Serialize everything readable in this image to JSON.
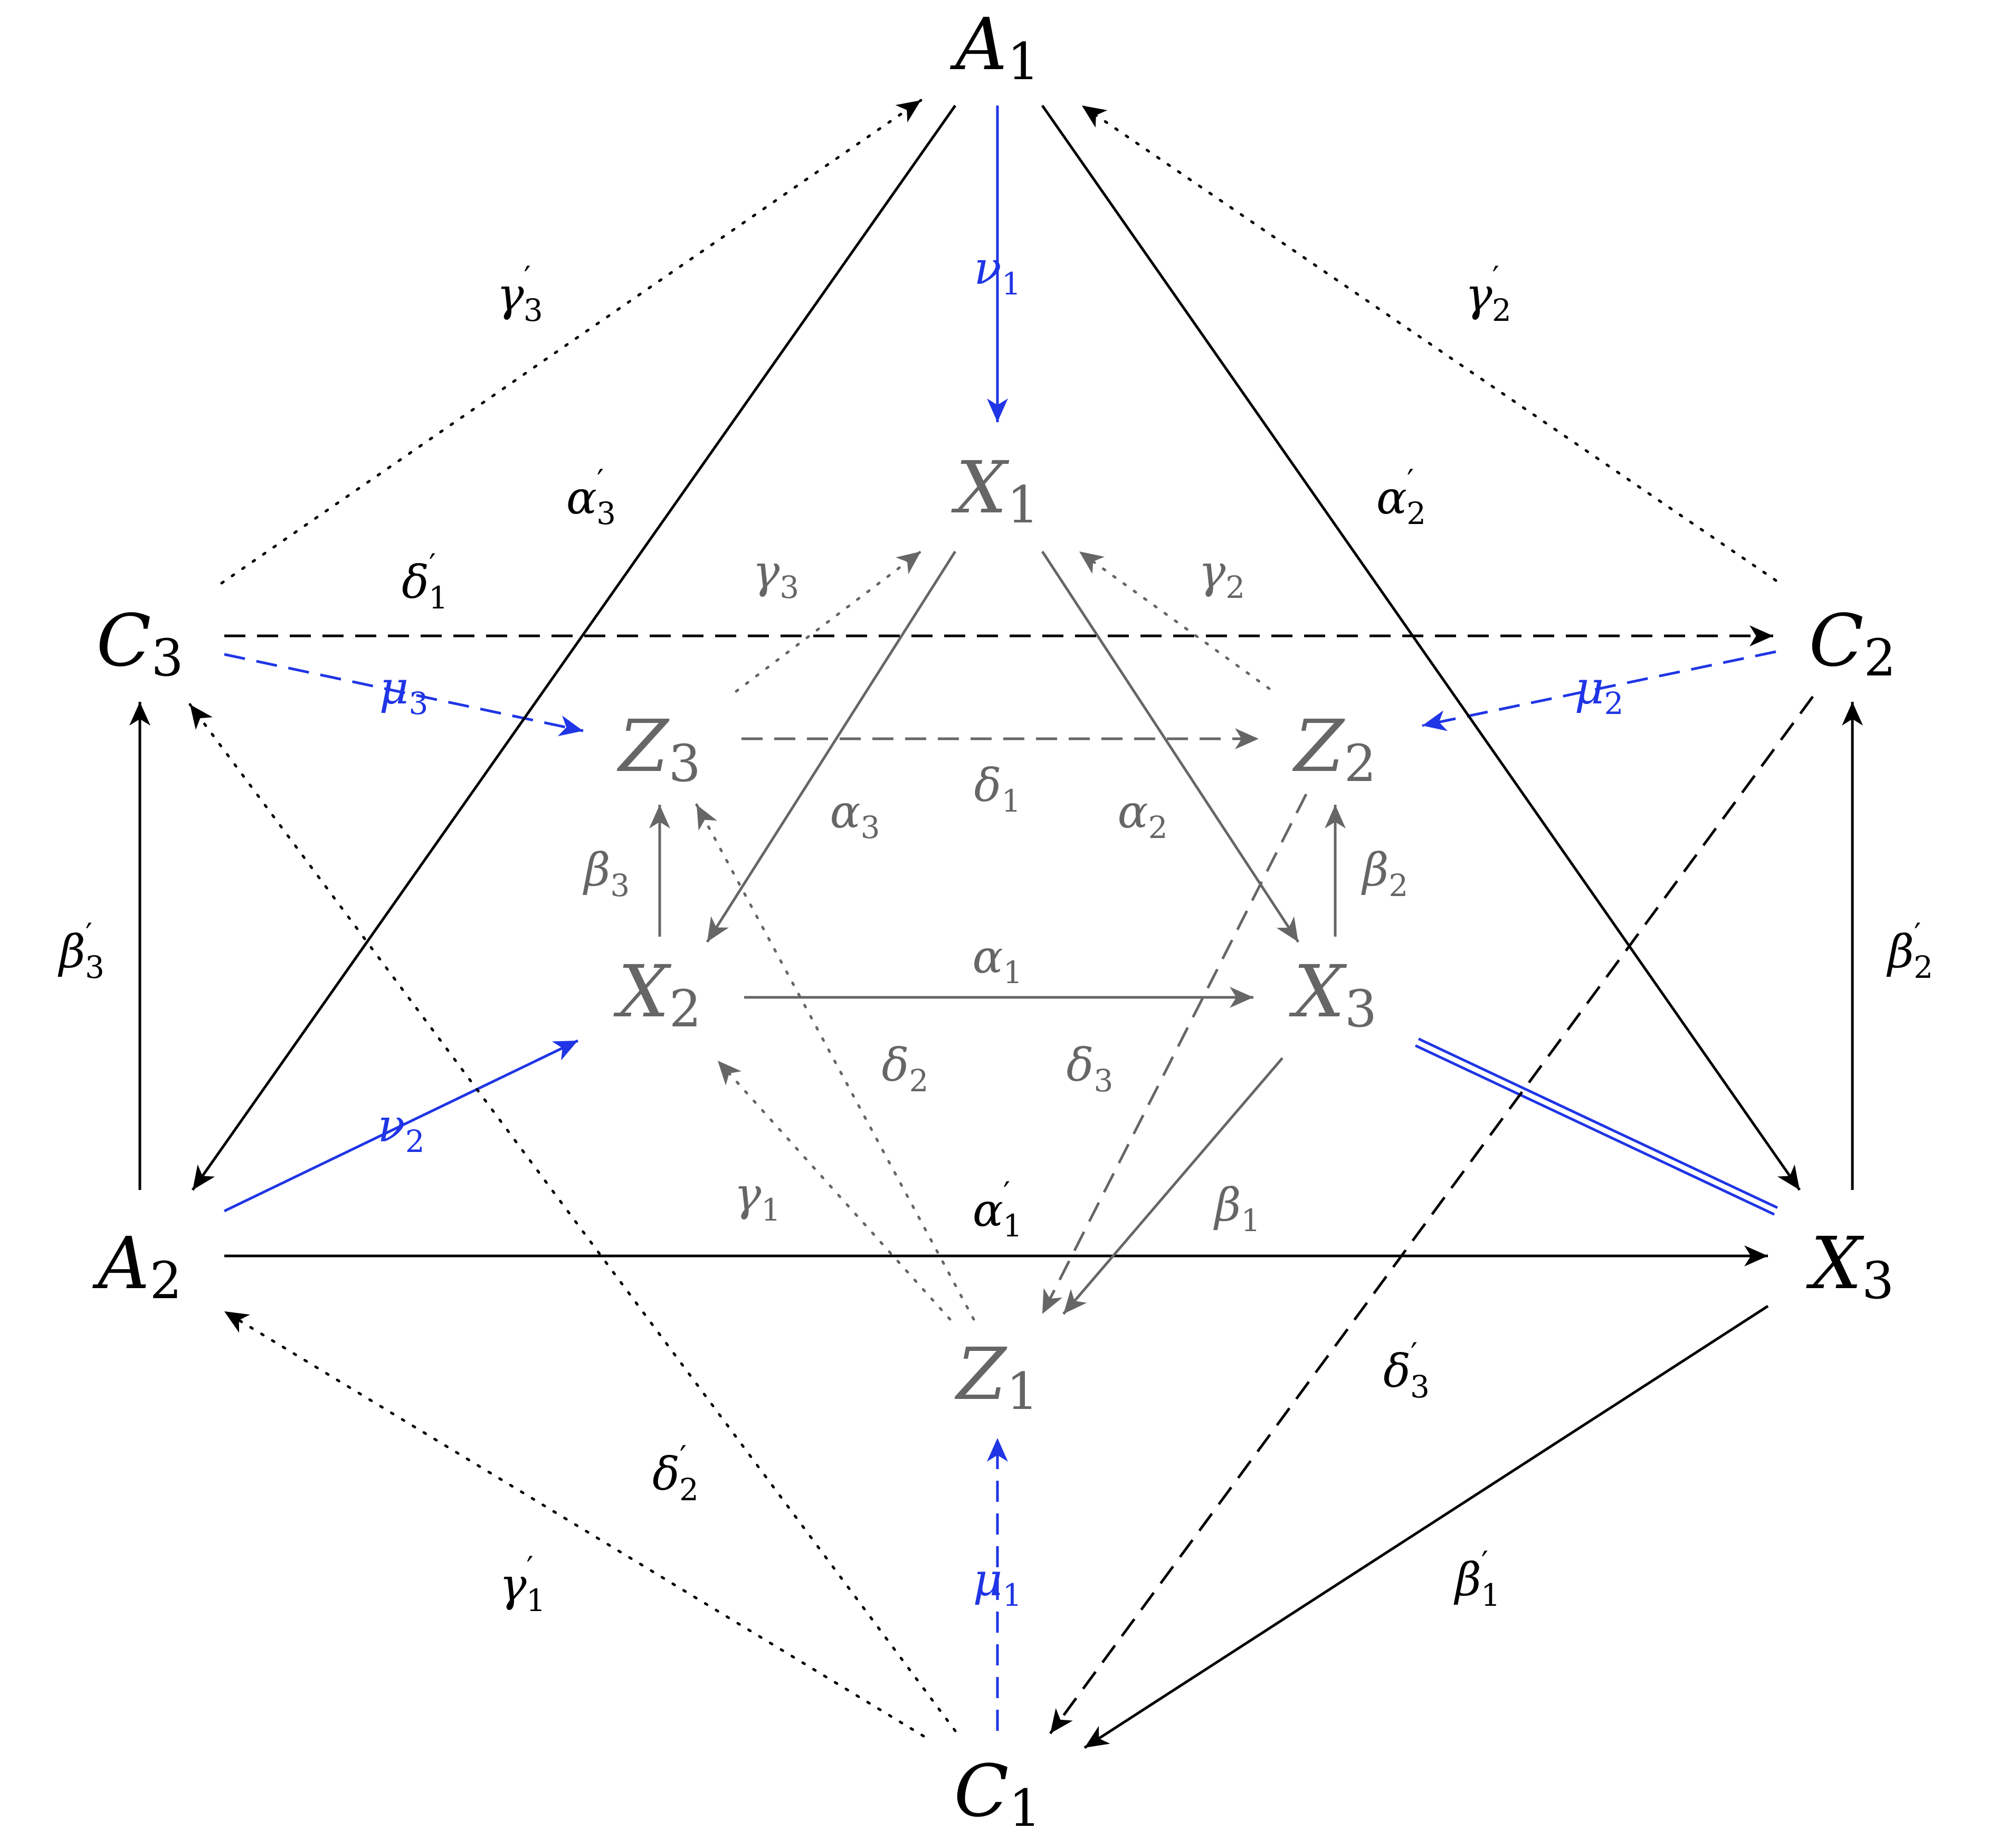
{
  "colors": {
    "outer": "#000000",
    "inner": "#666666",
    "blue": "#1f35e6"
  },
  "nodes": [
    {
      "id": "A1",
      "main": "A",
      "sub": "1",
      "color": "outer"
    },
    {
      "id": "C3",
      "main": "C",
      "sub": "3",
      "color": "outer"
    },
    {
      "id": "C2",
      "main": "C",
      "sub": "2",
      "color": "outer"
    },
    {
      "id": "A2",
      "main": "A",
      "sub": "2",
      "color": "outer"
    },
    {
      "id": "X3o",
      "main": "X",
      "sub": "3",
      "color": "outer"
    },
    {
      "id": "C1",
      "main": "C",
      "sub": "1",
      "color": "outer"
    },
    {
      "id": "X1",
      "main": "X",
      "sub": "1",
      "color": "inner"
    },
    {
      "id": "Z3",
      "main": "Z",
      "sub": "3",
      "color": "inner"
    },
    {
      "id": "Z2",
      "main": "Z",
      "sub": "2",
      "color": "inner"
    },
    {
      "id": "X2",
      "main": "X",
      "sub": "2",
      "color": "inner"
    },
    {
      "id": "X3i",
      "main": "X",
      "sub": "3",
      "color": "inner"
    },
    {
      "id": "Z1",
      "main": "Z",
      "sub": "1",
      "color": "inner"
    }
  ],
  "edges": [
    {
      "id": "nu1",
      "from": "A1",
      "to": "X1",
      "style": "solid",
      "color": "blue",
      "label": "ν",
      "sub": "1",
      "prime": false
    },
    {
      "id": "nu2",
      "from": "A2",
      "to": "X2",
      "style": "solid",
      "color": "blue",
      "label": "ν",
      "sub": "2",
      "prime": false
    },
    {
      "id": "mu1",
      "from": "C1",
      "to": "Z1",
      "style": "dashed",
      "color": "blue",
      "label": "μ",
      "sub": "1",
      "prime": false
    },
    {
      "id": "mu2",
      "from": "C2",
      "to": "Z2",
      "style": "dashed",
      "color": "blue",
      "label": "μ",
      "sub": "2",
      "prime": false
    },
    {
      "id": "mu3",
      "from": "C3",
      "to": "Z3",
      "style": "dashed",
      "color": "blue",
      "label": "μ",
      "sub": "3",
      "prime": false
    },
    {
      "id": "eq",
      "from": "X3i",
      "to": "X3o",
      "style": "double",
      "color": "blue",
      "label": "",
      "sub": "",
      "prime": false
    },
    {
      "id": "alpha1p",
      "from": "A2",
      "to": "X3o",
      "style": "solid",
      "color": "outer",
      "label": "α",
      "sub": "1",
      "prime": true
    },
    {
      "id": "alpha2p",
      "from": "A1",
      "to": "X3o",
      "style": "solid",
      "color": "outer",
      "label": "α",
      "sub": "2",
      "prime": true
    },
    {
      "id": "alpha3p",
      "from": "A1",
      "to": "A2",
      "style": "solid",
      "color": "outer",
      "label": "α",
      "sub": "3",
      "prime": true
    },
    {
      "id": "beta1p",
      "from": "X3o",
      "to": "C1",
      "style": "solid",
      "color": "outer",
      "label": "β",
      "sub": "1",
      "prime": true
    },
    {
      "id": "beta2p",
      "from": "X3o",
      "to": "C2",
      "style": "solid",
      "color": "outer",
      "label": "β",
      "sub": "2",
      "prime": true
    },
    {
      "id": "beta3p",
      "from": "A2",
      "to": "C3",
      "style": "solid",
      "color": "outer",
      "label": "β",
      "sub": "3",
      "prime": true
    },
    {
      "id": "gamma1p",
      "from": "C1",
      "to": "A2",
      "style": "dotted",
      "color": "outer",
      "label": "γ",
      "sub": "1",
      "prime": true
    },
    {
      "id": "gamma2p",
      "from": "C2",
      "to": "A1",
      "style": "dotted",
      "color": "outer",
      "label": "γ",
      "sub": "2",
      "prime": true
    },
    {
      "id": "gamma3p",
      "from": "C3",
      "to": "A1",
      "style": "dotted",
      "color": "outer",
      "label": "γ",
      "sub": "3",
      "prime": true
    },
    {
      "id": "delta1p",
      "from": "C3",
      "to": "C2",
      "style": "dashed",
      "color": "outer",
      "label": "δ",
      "sub": "1",
      "prime": true
    },
    {
      "id": "delta2p",
      "from": "C1",
      "to": "C3",
      "style": "dotted",
      "color": "outer",
      "label": "δ",
      "sub": "2",
      "prime": true
    },
    {
      "id": "delta3p",
      "from": "C2",
      "to": "C1",
      "style": "dashed",
      "color": "outer",
      "label": "δ",
      "sub": "3",
      "prime": true
    },
    {
      "id": "alpha1",
      "from": "X2",
      "to": "X3i",
      "style": "solid",
      "color": "inner",
      "label": "α",
      "sub": "1",
      "prime": false
    },
    {
      "id": "alpha2",
      "from": "X1",
      "to": "X3i",
      "style": "solid",
      "color": "inner",
      "label": "α",
      "sub": "2",
      "prime": false
    },
    {
      "id": "alpha3",
      "from": "X1",
      "to": "X2",
      "style": "solid",
      "color": "inner",
      "label": "α",
      "sub": "3",
      "prime": false
    },
    {
      "id": "beta1",
      "from": "X3i",
      "to": "Z1",
      "style": "solid",
      "color": "inner",
      "label": "β",
      "sub": "1",
      "prime": false
    },
    {
      "id": "beta2",
      "from": "X3i",
      "to": "Z2",
      "style": "solid",
      "color": "inner",
      "label": "β",
      "sub": "2",
      "prime": false
    },
    {
      "id": "beta3",
      "from": "X2",
      "to": "Z3",
      "style": "solid",
      "color": "inner",
      "label": "β",
      "sub": "3",
      "prime": false
    },
    {
      "id": "gamma1",
      "from": "Z1",
      "to": "X2",
      "style": "dotted",
      "color": "inner",
      "label": "γ",
      "sub": "1",
      "prime": false
    },
    {
      "id": "gamma2",
      "from": "Z2",
      "to": "X1",
      "style": "dotted",
      "color": "inner",
      "label": "γ",
      "sub": "2",
      "prime": false
    },
    {
      "id": "gamma3",
      "from": "Z3",
      "to": "X1",
      "style": "dotted",
      "color": "inner",
      "label": "γ",
      "sub": "3",
      "prime": false
    },
    {
      "id": "delta1",
      "from": "Z3",
      "to": "Z2",
      "style": "dashed",
      "color": "inner",
      "label": "δ",
      "sub": "1",
      "prime": false
    },
    {
      "id": "delta2",
      "from": "Z1",
      "to": "Z3",
      "style": "dotted",
      "color": "inner",
      "label": "δ",
      "sub": "2",
      "prime": false
    },
    {
      "id": "delta3",
      "from": "Z2",
      "to": "Z1",
      "style": "dashed",
      "color": "inner",
      "label": "δ",
      "sub": "3",
      "prime": false
    }
  ]
}
